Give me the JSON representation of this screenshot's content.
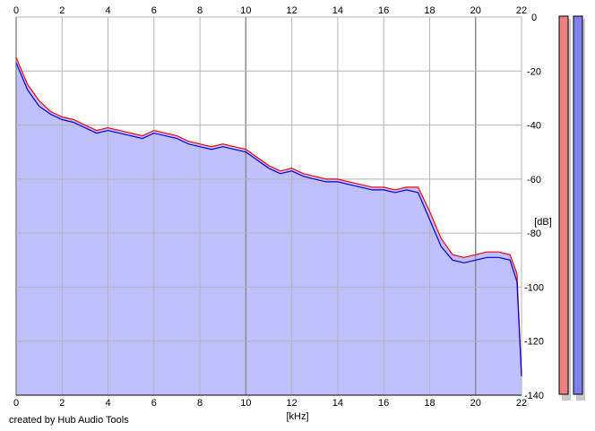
{
  "credit": "created by Hub Audio Tools",
  "chart_data": {
    "type": "area",
    "x_unit_label": "[kHz]",
    "y_unit_label": "[dB]",
    "xlim": [
      0,
      22
    ],
    "ylim": [
      -140,
      0
    ],
    "x_ticks": [
      0,
      2,
      4,
      6,
      8,
      10,
      12,
      14,
      16,
      18,
      20,
      22
    ],
    "y_ticks": [
      0,
      -20,
      -40,
      -60,
      -80,
      -100,
      -120,
      -140
    ],
    "grid": true,
    "background_color": "#ffffff",
    "fill_color": "#c0c0ff",
    "grid_color": "#b4b4b4",
    "series": [
      {
        "color": "#ff0000",
        "x": [
          0,
          0.5,
          1,
          1.5,
          2,
          2.5,
          3,
          3.5,
          4,
          4.5,
          5,
          5.5,
          6,
          6.5,
          7,
          7.5,
          8,
          8.5,
          9,
          9.5,
          10,
          10.5,
          11,
          11.5,
          12,
          12.5,
          13,
          13.5,
          14,
          14.5,
          15,
          15.5,
          16,
          16.5,
          17,
          17.5,
          18,
          18.5,
          19,
          19.5,
          20,
          20.5,
          21,
          21.5,
          21.8,
          22
        ],
        "y": [
          -15,
          -25,
          -31,
          -35,
          -37,
          -38,
          -40,
          -42,
          -41,
          -42,
          -43,
          -44,
          -42,
          -43,
          -44,
          -46,
          -47,
          -48,
          -47,
          -48,
          -49,
          -52,
          -55,
          -57,
          -56,
          -58,
          -59,
          -60,
          -60,
          -61,
          -62,
          -63,
          -63,
          -64,
          -63,
          -63,
          -72,
          -82,
          -88,
          -89,
          -88,
          -87,
          -87,
          -88,
          -95,
          -133
        ]
      },
      {
        "color": "#0000dd",
        "x": [
          0,
          0.5,
          1,
          1.5,
          2,
          2.5,
          3,
          3.5,
          4,
          4.5,
          5,
          5.5,
          6,
          6.5,
          7,
          7.5,
          8,
          8.5,
          9,
          9.5,
          10,
          10.5,
          11,
          11.5,
          12,
          12.5,
          13,
          13.5,
          14,
          14.5,
          15,
          15.5,
          16,
          16.5,
          17,
          17.5,
          18,
          18.5,
          19,
          19.5,
          20,
          20.5,
          21,
          21.5,
          21.8,
          22
        ],
        "y": [
          -17,
          -27,
          -33,
          -36,
          -38,
          -39,
          -41,
          -43,
          -42,
          -43,
          -44,
          -45,
          -43,
          -44,
          -45,
          -47,
          -48,
          -49,
          -48,
          -49,
          -50,
          -53,
          -56,
          -58,
          -57,
          -59,
          -60,
          -61,
          -61,
          -62,
          -63,
          -64,
          -64,
          -65,
          -64,
          -65,
          -75,
          -85,
          -90,
          -91,
          -90,
          -89,
          -89,
          -90,
          -98,
          -133
        ]
      }
    ],
    "meters": [
      {
        "channel": "left",
        "color": "#ee8080"
      },
      {
        "channel": "right",
        "color": "#8080ee"
      }
    ]
  }
}
